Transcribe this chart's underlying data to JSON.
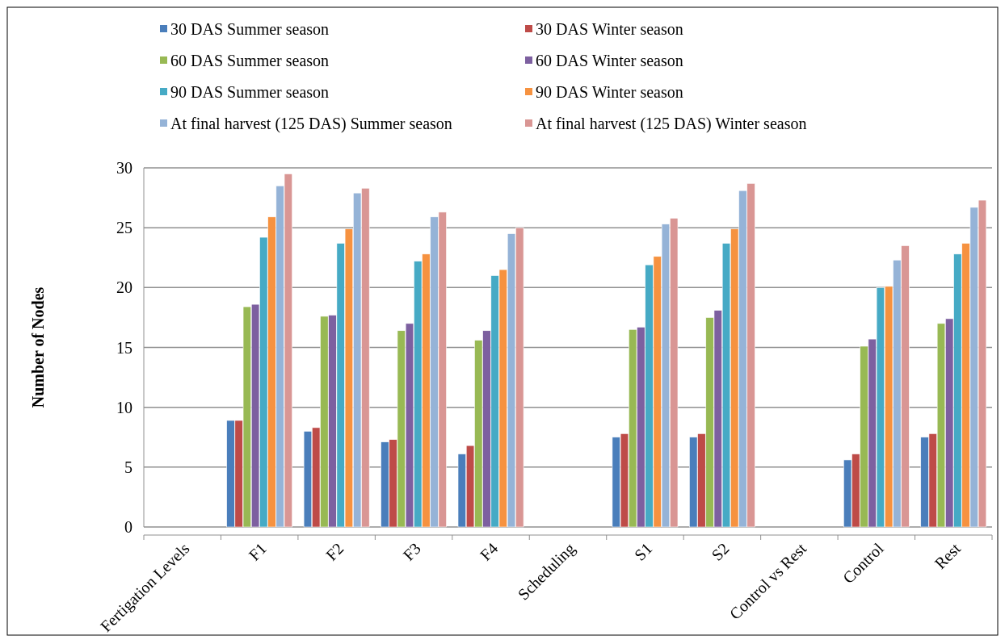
{
  "chart_data": {
    "type": "bar",
    "ylabel": "Number of Nodes",
    "categories": [
      "Fertigation Levels",
      "F1",
      "F2",
      "F3",
      "F4",
      "Scheduling",
      "S1",
      "S2",
      "Control vs Rest",
      "Control",
      "Rest"
    ],
    "series": [
      {
        "name": "30 DAS Summer season",
        "color": "#4a7ebb",
        "values": [
          null,
          8.9,
          8.0,
          7.1,
          6.1,
          null,
          7.5,
          7.5,
          null,
          5.6,
          7.5
        ]
      },
      {
        "name": "30 DAS Winter season",
        "color": "#be4b48",
        "values": [
          null,
          8.9,
          8.3,
          7.3,
          6.8,
          null,
          7.8,
          7.8,
          null,
          6.1,
          7.8
        ]
      },
      {
        "name": "60 DAS Summer season",
        "color": "#98b954",
        "values": [
          null,
          18.4,
          17.6,
          16.4,
          15.6,
          null,
          16.5,
          17.5,
          null,
          15.1,
          17.0
        ]
      },
      {
        "name": "60 DAS Winter season",
        "color": "#7d60a0",
        "values": [
          null,
          18.6,
          17.7,
          17.0,
          16.4,
          null,
          16.7,
          18.1,
          null,
          15.7,
          17.4
        ]
      },
      {
        "name": "90 DAS Summer season",
        "color": "#46aac5",
        "values": [
          null,
          24.2,
          23.7,
          22.2,
          21.0,
          null,
          21.9,
          23.7,
          null,
          20.0,
          22.8
        ]
      },
      {
        "name": "90 DAS Winter season",
        "color": "#f69240",
        "values": [
          null,
          25.9,
          24.9,
          22.8,
          21.5,
          null,
          22.6,
          24.9,
          null,
          20.1,
          23.7
        ]
      },
      {
        "name": "At final harvest (125 DAS) Summer season",
        "color": "#95b3d7",
        "values": [
          null,
          28.5,
          27.9,
          25.9,
          24.5,
          null,
          25.3,
          28.1,
          null,
          22.3,
          26.7
        ]
      },
      {
        "name": "At final harvest (125 DAS) Winter season",
        "color": "#d99694",
        "values": [
          null,
          29.5,
          28.3,
          26.3,
          25.0,
          null,
          25.8,
          28.7,
          null,
          23.5,
          27.3
        ]
      }
    ],
    "ylim": [
      0,
      30
    ],
    "yticks": [
      0,
      5,
      10,
      15,
      20,
      25,
      30
    ],
    "grid": "y",
    "legend": "top"
  }
}
